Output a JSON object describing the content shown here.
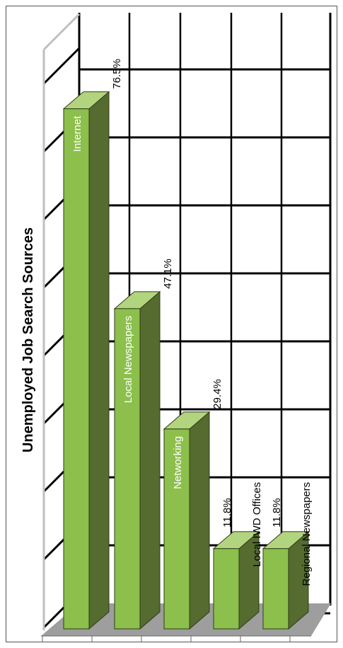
{
  "chart_data": {
    "type": "bar",
    "title": "Unemployed Job Search Sources",
    "categories": [
      "Internet",
      "Local Newspapers",
      "Networking",
      "Local IWD Offices",
      "Regional Newspapers"
    ],
    "series": [
      {
        "values": [
          76.5,
          47.1,
          29.4,
          11.8,
          11.8
        ]
      }
    ],
    "value_labels": [
      "76.5%",
      "47.1%",
      "29.4%",
      "11.8%",
      "11.8%"
    ],
    "ylim": [
      0,
      80
    ],
    "grid": true,
    "orientation": "rotated-90",
    "three_d": true
  },
  "colors": {
    "bar_front": "#8cbf4c",
    "bar_side": "#556b2f",
    "bar_top": "#b3d47e",
    "floor": "#9e9e9e",
    "grid": "#000000",
    "wall": "#ffffff"
  }
}
